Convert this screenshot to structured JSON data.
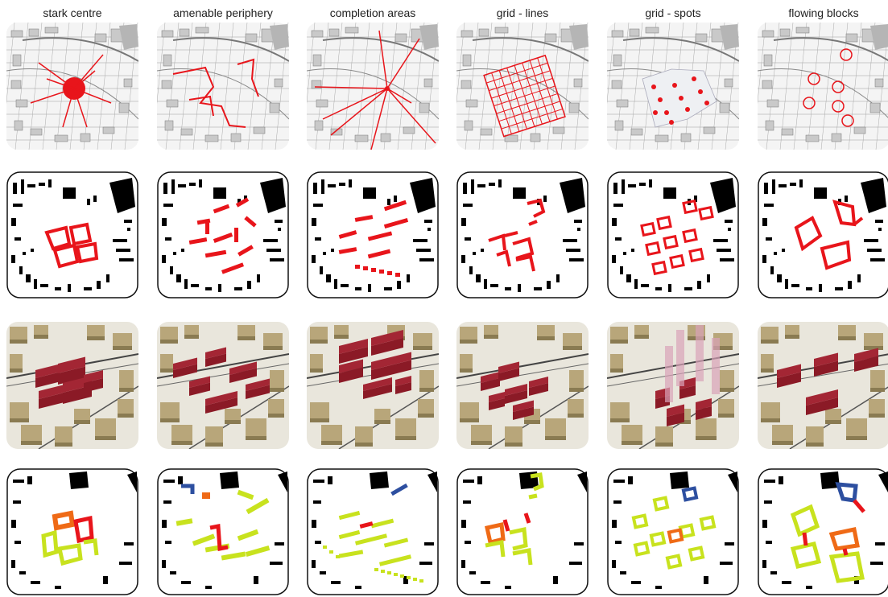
{
  "columns": [
    {
      "title": "stark centre"
    },
    {
      "title": "amenable periphery"
    },
    {
      "title": "completion areas"
    },
    {
      "title": "grid - lines"
    },
    {
      "title": "grid - spots"
    },
    {
      "title": "flowing blocks"
    }
  ],
  "colors": {
    "accent_red": "#e8151b",
    "model_red": "#8b1a26",
    "building_tan": "#b8a67a",
    "phase_green": "#c8e21e",
    "phase_orange": "#ef6a16",
    "phase_blue": "#2d4fa0",
    "phase_red": "#e8151b"
  },
  "rows": [
    "concept-sketch",
    "figure-ground-plan",
    "3d-massing-model",
    "phasing-plan"
  ]
}
